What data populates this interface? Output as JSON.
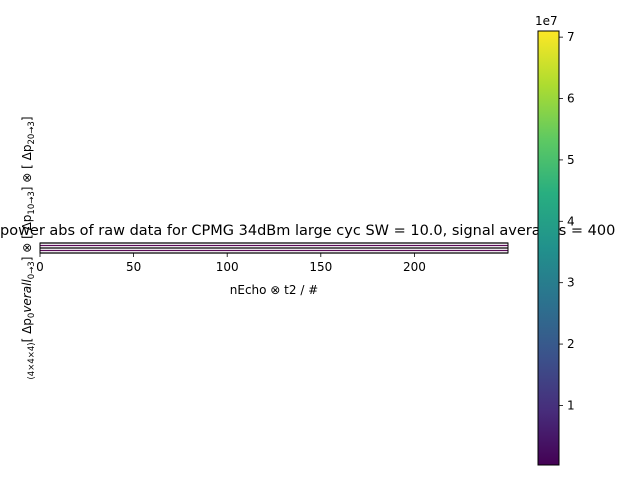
{
  "chart_data": {
    "type": "heatmap",
    "title": "power abs of raw data for CPMG 34dBm large cyc SW = 10.0, signal averages = 400",
    "xlabel": "nEcho ⊗ t2 / #",
    "ylabel_parts": [
      {
        "text": "(4×4×4)",
        "sub": true
      },
      {
        "text": "[ Δp",
        "italic": false
      },
      {
        "text": "0",
        "sub": true
      },
      {
        "text": "verall",
        "italic": true
      },
      {
        "text": "0→3",
        "sub": true
      },
      {
        "text": "] ⊗ [ Δp",
        "italic": false
      },
      {
        "text": "1",
        "sub": true
      },
      {
        "text": "0→3",
        "sub": true
      },
      {
        "text": "] ⊗ [ Δp",
        "italic": false
      },
      {
        "text": "2",
        "sub": true
      },
      {
        "text": "0→3",
        "sub": true
      },
      {
        "text": "]",
        "italic": false
      }
    ],
    "x_ticks": [
      0,
      50,
      100,
      150,
      200
    ],
    "xlim": [
      0,
      250
    ],
    "n_blocks": 4,
    "colorbar": {
      "colormap": "viridis",
      "min": 0.03,
      "max": 7.1,
      "ticks": [
        1,
        2,
        3,
        4,
        5,
        6,
        7
      ],
      "exponent_label": "1e7"
    }
  }
}
